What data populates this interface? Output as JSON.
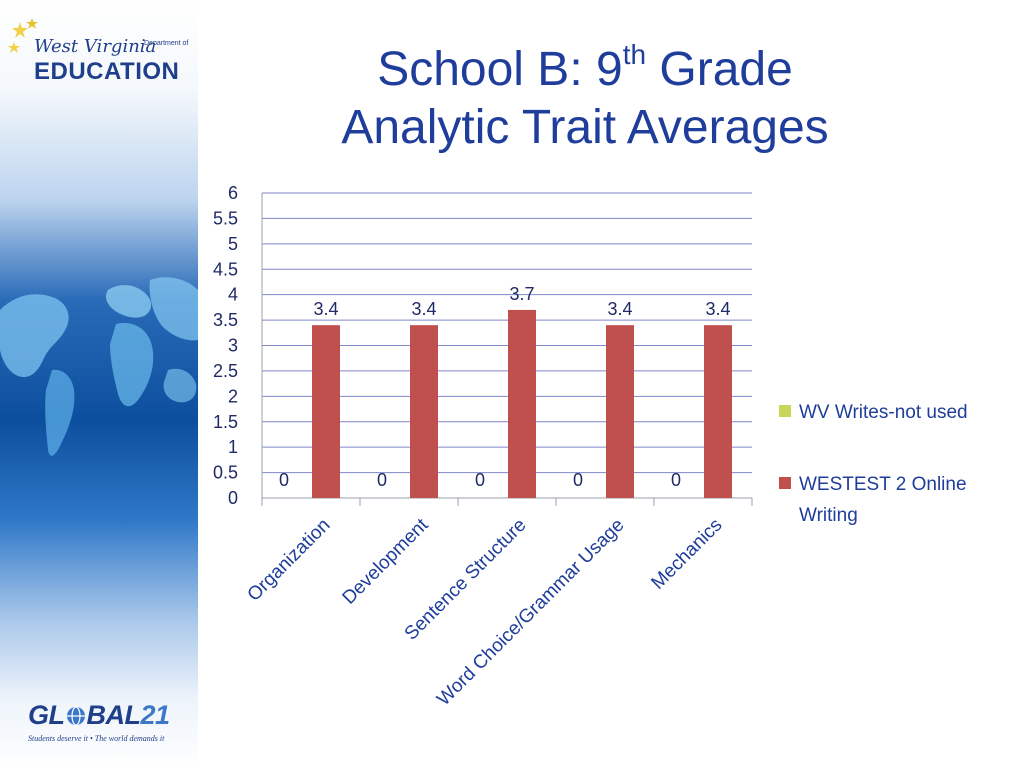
{
  "header": {
    "logo_script": "West Virginia",
    "logo_dept": "Department of",
    "logo_edu": "EDUCATION",
    "title_prefix": "School B:  9",
    "title_sup": "th",
    "title_suffix": " Grade",
    "title_line2": "Analytic Trait Averages"
  },
  "footer": {
    "logo_prefix": "GL",
    "logo_mid": "BAL",
    "logo_num": "21",
    "tagline": "Students deserve it • The world demands it"
  },
  "colors": {
    "series_wv": "#c8d65a",
    "series_westest": "#c0504d",
    "gridline": "#7f86c8",
    "axis": "#9aa0a8"
  },
  "chart_data": {
    "type": "bar",
    "categories": [
      "Organization",
      "Development",
      "Sentence Structure",
      "Word Choice/Grammar Usage",
      "Mechanics"
    ],
    "series": [
      {
        "name": "WV Writes-not used",
        "values": [
          0,
          0,
          0,
          0,
          0
        ],
        "labels": [
          "0",
          "0",
          "0",
          "0",
          "0"
        ]
      },
      {
        "name": "WESTEST 2 Online Writing",
        "values": [
          3.4,
          3.4,
          3.7,
          3.4,
          3.4
        ],
        "labels": [
          "3.4",
          "3.4",
          "3.7",
          "3.4",
          "3.4"
        ]
      }
    ],
    "ylim": [
      0,
      6
    ],
    "yticks": [
      "0",
      "0.5",
      "1",
      "1.5",
      "2",
      "2.5",
      "3",
      "3.5",
      "4",
      "4.5",
      "5",
      "5.5",
      "6"
    ],
    "grid": true,
    "legend": "right"
  }
}
